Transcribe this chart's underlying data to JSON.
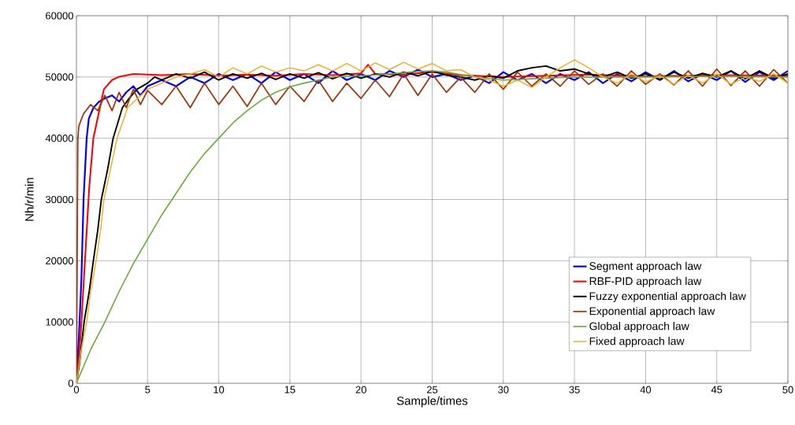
{
  "chart_data": {
    "type": "line",
    "xlabel": "Sample/times",
    "ylabel": "Nh/r/min",
    "xlim": [
      0,
      50
    ],
    "ylim": [
      0,
      60000
    ],
    "xticks": [
      0,
      5,
      10,
      15,
      20,
      25,
      30,
      35,
      40,
      45,
      50
    ],
    "yticks": [
      0,
      10000,
      20000,
      30000,
      40000,
      50000,
      60000
    ],
    "grid": true,
    "legend": "bottom right",
    "marker": "none",
    "line_style": "solid",
    "series": [
      {
        "name": "Segment approach law",
        "color": "#0000ff",
        "x": [
          0,
          0.2,
          0.35,
          0.5,
          0.72,
          0.87,
          1.2,
          1.6,
          2,
          2.5,
          3,
          3.5,
          4,
          4.5,
          5,
          6,
          7,
          8,
          9,
          10,
          11,
          12,
          13,
          14,
          15,
          16,
          17,
          18,
          19,
          20,
          21,
          22,
          23,
          24,
          25,
          26,
          27,
          28,
          29,
          30,
          31,
          32,
          33,
          34,
          35,
          36,
          37,
          38,
          39,
          40,
          41,
          42,
          43,
          44,
          45,
          46,
          47,
          48,
          49,
          50
        ],
        "values": [
          0,
          9000,
          17000,
          30000,
          40000,
          43200,
          45000,
          46000,
          46500,
          47000,
          46000,
          47500,
          48500,
          47000,
          48500,
          49500,
          48500,
          50000,
          49000,
          50500,
          49500,
          50500,
          49000,
          50800,
          49500,
          50500,
          49000,
          51000,
          49500,
          50500,
          49500,
          51000,
          50000,
          51200,
          50000,
          50500,
          49500,
          50200,
          49000,
          50800,
          49500,
          50500,
          49000,
          50500,
          49500,
          50800,
          49000,
          50500,
          49300,
          50800,
          49500,
          51000,
          49300,
          50500,
          49500,
          51000,
          49200,
          50800,
          49500,
          51000
        ]
      },
      {
        "name": "RBF-PID approach law",
        "color": "#ff0000",
        "x": [
          0,
          0.3,
          0.6,
          0.9,
          1.19,
          1.65,
          1.93,
          2.5,
          2.95,
          4,
          5,
          6,
          8,
          10,
          12,
          14,
          16,
          18,
          20,
          20.5,
          21,
          23,
          25,
          27,
          30,
          33,
          36,
          40,
          45,
          50
        ],
        "values": [
          0,
          8000,
          20000,
          32000,
          40000,
          45000,
          48000,
          49500,
          50000,
          50500,
          50400,
          50300,
          50500,
          50200,
          50400,
          50200,
          50500,
          50300,
          50600,
          52000,
          50500,
          50400,
          50800,
          50300,
          50000,
          50200,
          50400,
          50100,
          50300,
          50200
        ]
      },
      {
        "name": "Fuzzy exponential approach law",
        "color": "#000000",
        "x": [
          0,
          0.2,
          0.54,
          0.9,
          1.19,
          1.5,
          1.75,
          2.2,
          2.58,
          3.23,
          3.7,
          4.26,
          5,
          5.5,
          6,
          7,
          8,
          9,
          10,
          11,
          12,
          13,
          14,
          15,
          16,
          17,
          18,
          19,
          20,
          21,
          22,
          23,
          24,
          25,
          26,
          27,
          28,
          29,
          30,
          31,
          32,
          33,
          34,
          35,
          36,
          37,
          38,
          39,
          40,
          41,
          42,
          43,
          44,
          45,
          46,
          47,
          48,
          49,
          50
        ],
        "values": [
          0,
          3000,
          10000,
          15000,
          20000,
          25000,
          30000,
          35000,
          40000,
          45000,
          46500,
          48000,
          49000,
          50000,
          49500,
          50500,
          49800,
          50800,
          49500,
          50500,
          49800,
          50600,
          49600,
          50500,
          49800,
          50700,
          49700,
          50600,
          49800,
          50500,
          50000,
          50800,
          50200,
          51000,
          50300,
          50000,
          49500,
          50200,
          49800,
          51000,
          51500,
          51800,
          51000,
          51300,
          50500,
          50000,
          50800,
          49800,
          50500,
          49600,
          50800,
          49800,
          50600,
          50000,
          51000,
          49700,
          51000,
          49800,
          50500
        ]
      },
      {
        "name": "Exponential approach law",
        "color": "#a0350a",
        "x": [
          0,
          0.1,
          0.17,
          0.5,
          1,
          1.5,
          2,
          2.5,
          3,
          3.5,
          4,
          4.5,
          5,
          6,
          7,
          8,
          9,
          10,
          11,
          12,
          13,
          14,
          15,
          16,
          17,
          18,
          19,
          20,
          21,
          22,
          23,
          24,
          25,
          26,
          27,
          28,
          29,
          30,
          31,
          32,
          33,
          34,
          35,
          36,
          37,
          38,
          39,
          40,
          41,
          42,
          43,
          44,
          45,
          46,
          47,
          48,
          49,
          50
        ],
        "values": [
          0,
          40000,
          42000,
          44000,
          45500,
          44500,
          47000,
          44500,
          47500,
          45000,
          48000,
          45500,
          47800,
          45500,
          48500,
          45000,
          49000,
          45500,
          48500,
          45200,
          49000,
          45500,
          48500,
          46000,
          49500,
          46000,
          49000,
          46500,
          49500,
          46800,
          50500,
          47000,
          50500,
          47500,
          50000,
          47500,
          50500,
          48000,
          50800,
          48500,
          50500,
          48500,
          51000,
          48800,
          50500,
          48500,
          51000,
          48800,
          50500,
          48700,
          51000,
          48500,
          51300,
          48600,
          51000,
          48500,
          51200,
          49000
        ]
      },
      {
        "name": "Global approach law",
        "color": "#6aab3a",
        "x": [
          0,
          1,
          2,
          3,
          4,
          5,
          6,
          7,
          8,
          9,
          10,
          11,
          12,
          13,
          14,
          15,
          16,
          17,
          18,
          20,
          22,
          24,
          25,
          26,
          28,
          30,
          32,
          35,
          40,
          45,
          50
        ],
        "values": [
          0,
          5500,
          10000,
          15000,
          19500,
          23500,
          27500,
          31000,
          34500,
          37500,
          40000,
          42500,
          44500,
          46200,
          47500,
          48400,
          49000,
          49500,
          50000,
          50200,
          50500,
          50900,
          51000,
          50800,
          50000,
          49500,
          49700,
          50000,
          50000,
          50100,
          50000
        ]
      },
      {
        "name": "Fixed  approach law",
        "color": "#f0b020",
        "x": [
          0,
          0.3,
          0.72,
          1,
          1.38,
          1.7,
          1.93,
          2.4,
          2.86,
          3.6,
          4.3,
          5,
          6,
          7,
          8,
          9,
          10,
          11,
          12,
          13,
          14,
          15,
          16,
          17,
          18,
          19,
          20,
          21,
          22,
          23,
          24,
          25,
          26,
          27,
          28,
          29,
          30,
          31,
          32,
          33,
          34,
          35,
          36,
          37,
          38,
          39,
          40,
          41,
          42,
          43,
          44,
          45,
          46,
          47,
          48,
          49,
          50
        ],
        "values": [
          0,
          5000,
          10000,
          15000,
          20000,
          25000,
          30000,
          35000,
          40000,
          45000,
          46500,
          48000,
          49000,
          50000,
          50500,
          51200,
          50000,
          51500,
          50500,
          51800,
          50800,
          51500,
          51000,
          52000,
          51000,
          52200,
          51000,
          52300,
          51200,
          52400,
          51300,
          52200,
          51000,
          51200,
          50000,
          49500,
          48500,
          49500,
          48300,
          50000,
          51500,
          52800,
          51500,
          50000,
          49000,
          50500,
          49200,
          50200,
          48800,
          50300,
          49000,
          50500,
          48800,
          50000,
          49300,
          50500,
          49000
        ]
      }
    ]
  }
}
